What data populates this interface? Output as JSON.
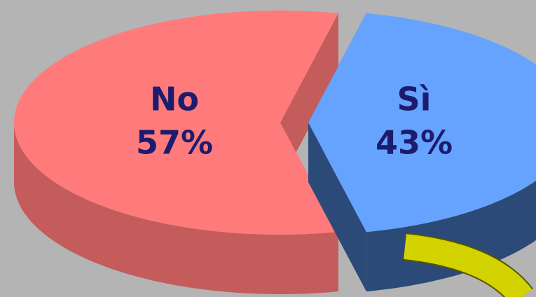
{
  "chart_data": {
    "type": "pie",
    "categories": [
      "No",
      "Sì"
    ],
    "values": [
      57,
      43
    ],
    "value_labels": [
      "57%",
      "43%"
    ],
    "colors": [
      "#ff7b7b",
      "#66a3ff"
    ],
    "side_colors": [
      "#c45c5c",
      "#2b4a77"
    ]
  }
}
